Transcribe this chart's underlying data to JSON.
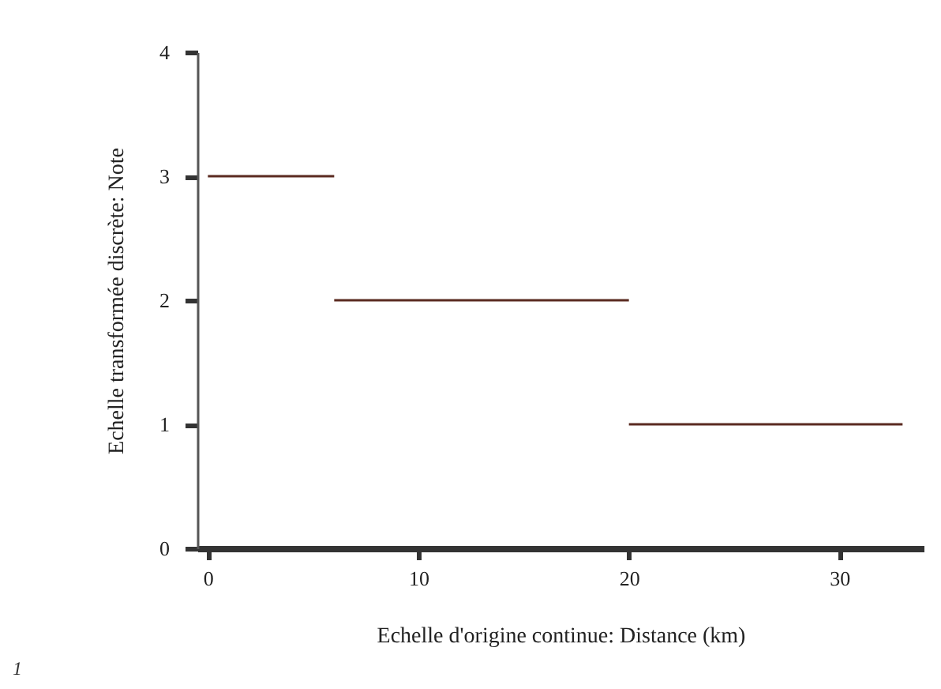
{
  "chart_data": {
    "type": "line",
    "xlabel": "Echelle d'origine continue: Distance (km)",
    "ylabel": "Echelle transformée discrète: Note",
    "xlim": [
      -0.5,
      34
    ],
    "ylim": [
      0,
      4
    ],
    "xticks": [
      0,
      10,
      20,
      30
    ],
    "yticks": [
      0,
      1,
      2,
      3,
      4
    ],
    "annotations": [
      "1"
    ],
    "series": [
      {
        "color": "#5a2a20",
        "x": [
          0,
          6
        ],
        "values": [
          3,
          3
        ]
      },
      {
        "color": "#5a2a20",
        "x": [
          6,
          20
        ],
        "values": [
          2,
          2
        ]
      },
      {
        "color": "#5a2a20",
        "x": [
          20,
          33
        ],
        "values": [
          1,
          1
        ]
      }
    ]
  }
}
